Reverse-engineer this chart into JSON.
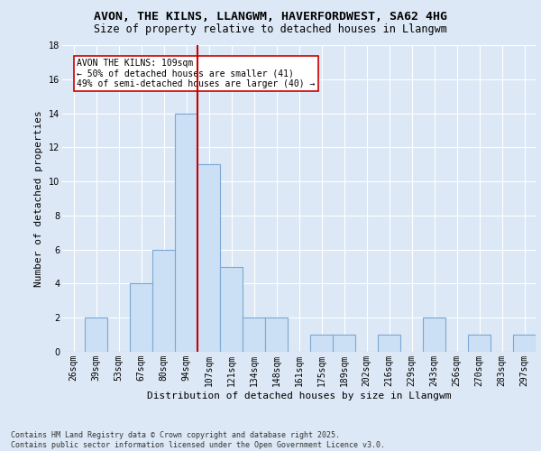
{
  "title1": "AVON, THE KILNS, LLANGWM, HAVERFORDWEST, SA62 4HG",
  "title2": "Size of property relative to detached houses in Llangwm",
  "xlabel": "Distribution of detached houses by size in Llangwm",
  "ylabel": "Number of detached properties",
  "categories": [
    "26sqm",
    "39sqm",
    "53sqm",
    "67sqm",
    "80sqm",
    "94sqm",
    "107sqm",
    "121sqm",
    "134sqm",
    "148sqm",
    "161sqm",
    "175sqm",
    "189sqm",
    "202sqm",
    "216sqm",
    "229sqm",
    "243sqm",
    "256sqm",
    "270sqm",
    "283sqm",
    "297sqm"
  ],
  "values": [
    0,
    2,
    0,
    4,
    6,
    14,
    11,
    5,
    2,
    2,
    0,
    1,
    1,
    0,
    1,
    0,
    2,
    0,
    1,
    0,
    1
  ],
  "bar_color": "#cce0f5",
  "bar_edge_color": "#7aa8d4",
  "highlight_index": 6,
  "red_line_color": "#cc0000",
  "annotation_text": "AVON THE KILNS: 109sqm\n← 50% of detached houses are smaller (41)\n49% of semi-detached houses are larger (40) →",
  "annotation_box_color": "#ffffff",
  "annotation_box_edge": "#cc0000",
  "ylim": [
    0,
    18
  ],
  "yticks": [
    0,
    2,
    4,
    6,
    8,
    10,
    12,
    14,
    16,
    18
  ],
  "background_color": "#dce8f5",
  "footer_text": "Contains HM Land Registry data © Crown copyright and database right 2025.\nContains public sector information licensed under the Open Government Licence v3.0.",
  "title_fontsize": 9.5,
  "subtitle_fontsize": 8.5,
  "tick_fontsize": 7,
  "ylabel_fontsize": 8,
  "xlabel_fontsize": 8,
  "footer_fontsize": 6,
  "annotation_fontsize": 7
}
